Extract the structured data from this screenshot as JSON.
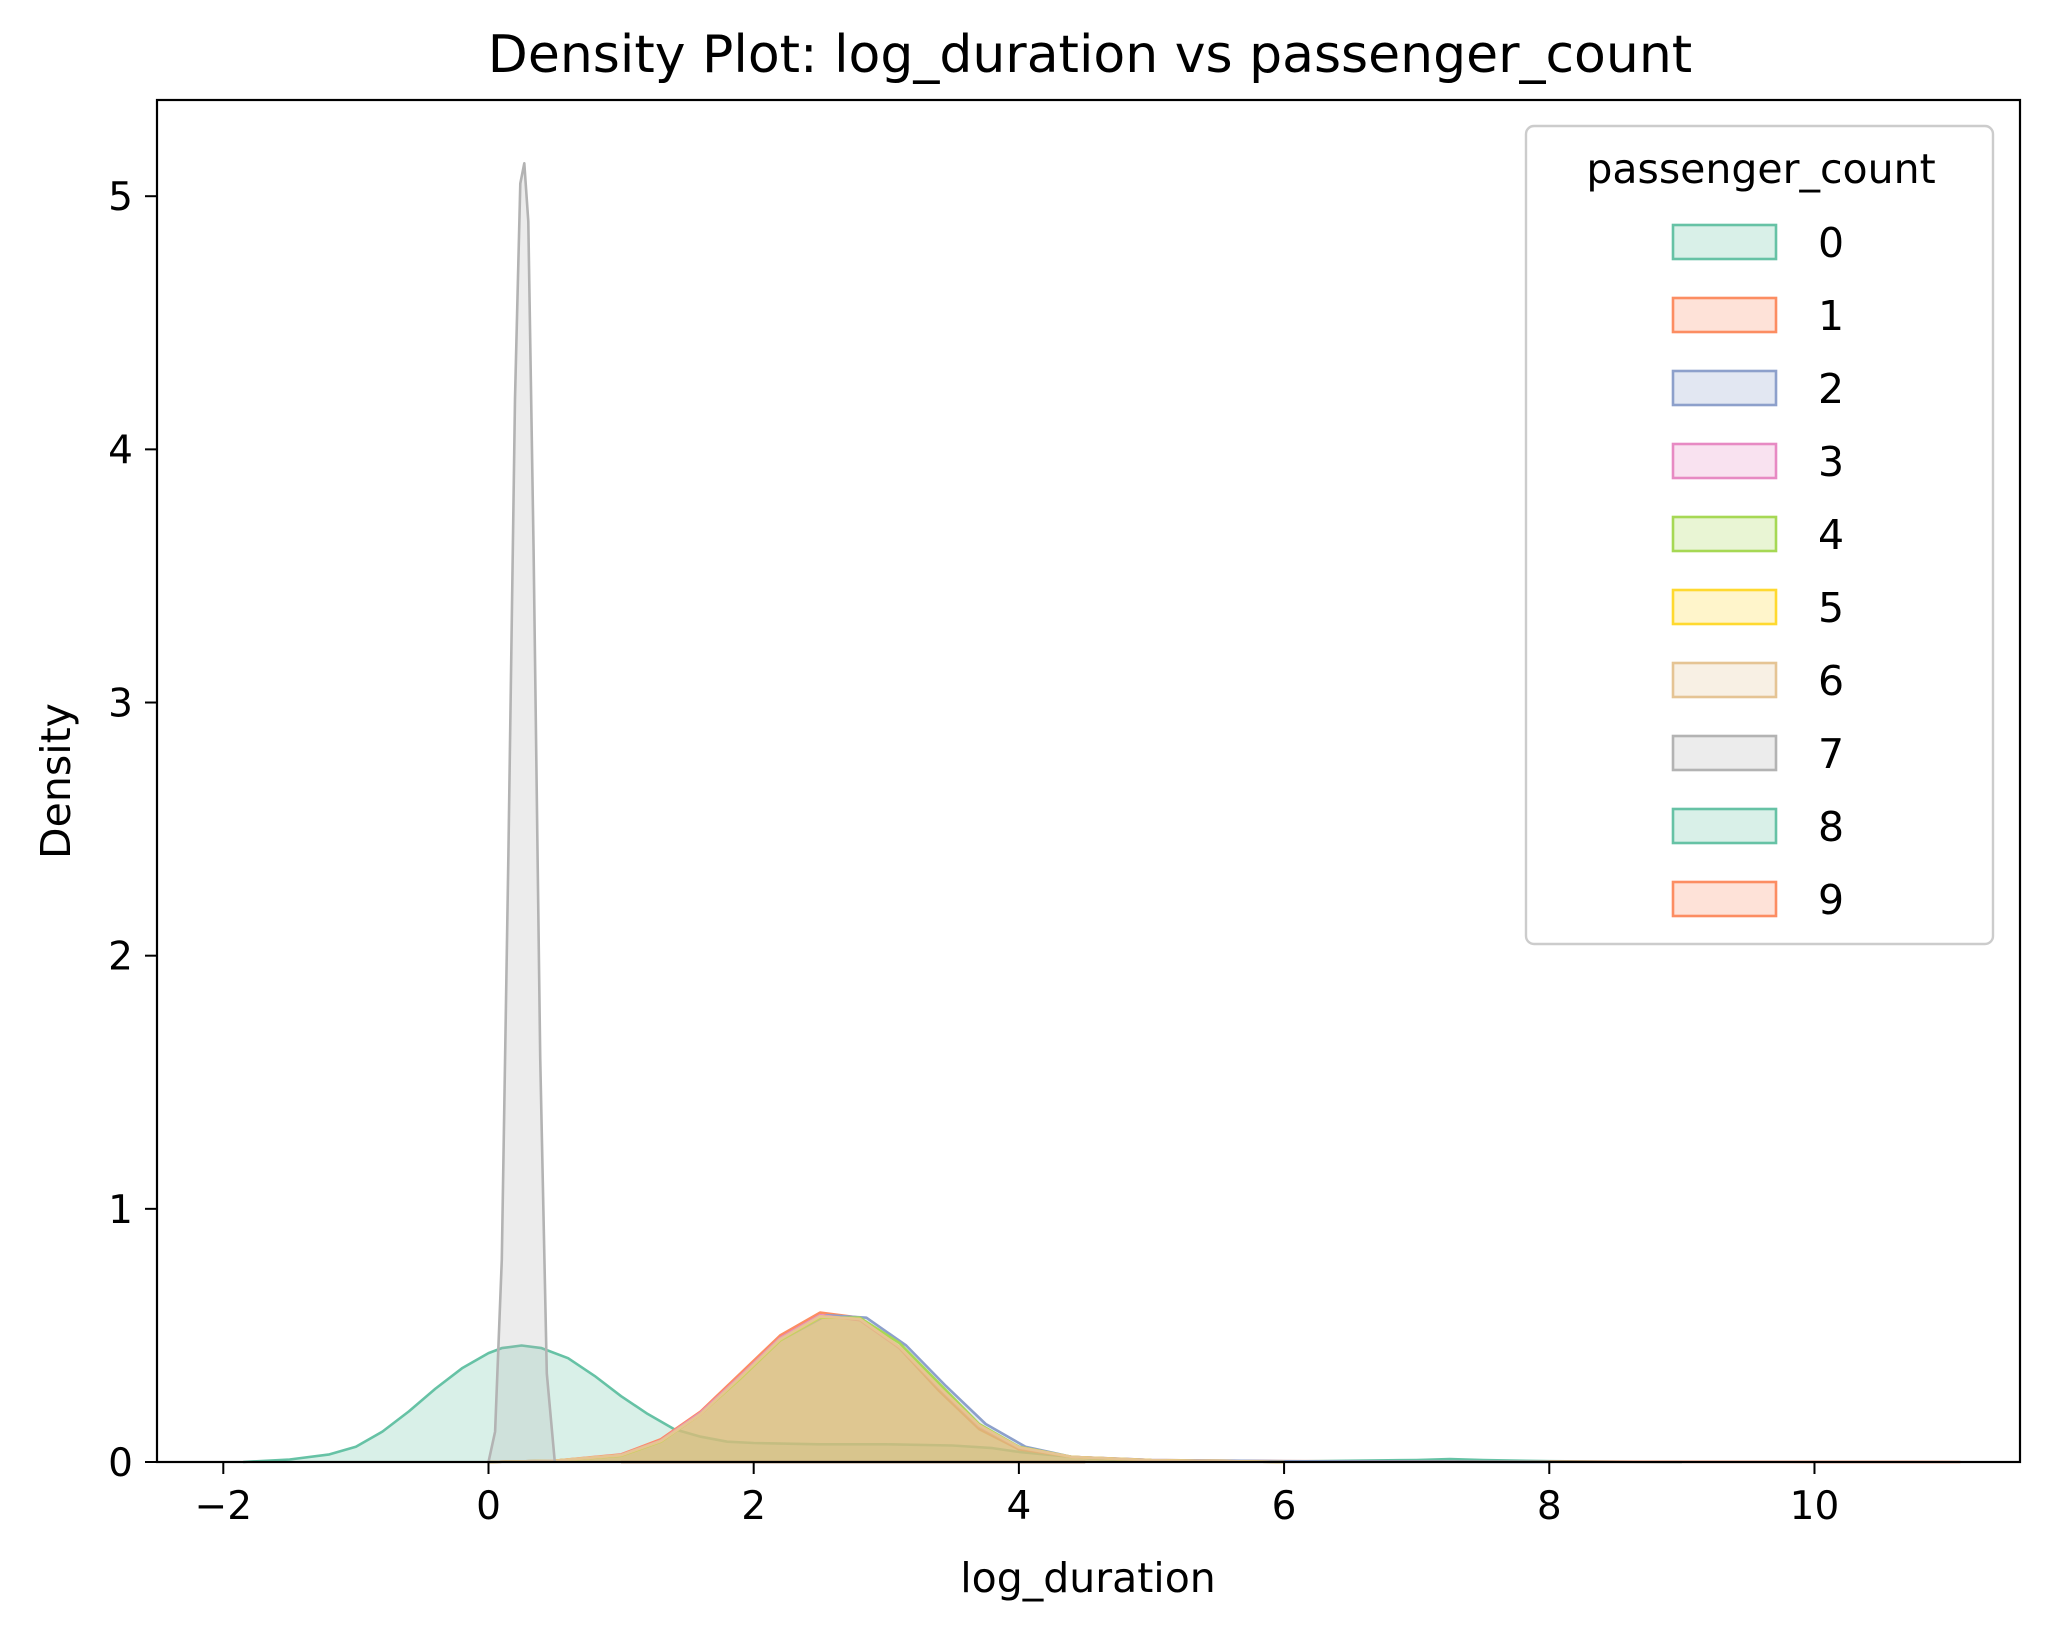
{
  "chart_data": {
    "type": "area",
    "title": "Density Plot: log_duration vs passenger_count",
    "xlabel": "log_duration",
    "ylabel": "Density",
    "xlim": [
      -2.5,
      11.55
    ],
    "ylim": [
      0,
      5.38
    ],
    "xticks": [
      -2,
      0,
      2,
      4,
      6,
      8,
      10
    ],
    "xtick_labels": [
      "−2",
      "0",
      "2",
      "4",
      "6",
      "8",
      "10"
    ],
    "yticks": [
      0,
      1,
      2,
      3,
      4,
      5
    ],
    "ytick_labels": [
      "0",
      "1",
      "2",
      "3",
      "4",
      "5"
    ],
    "grid": false,
    "legend": {
      "title": "passenger_count",
      "placement": "top-right"
    },
    "series": [
      {
        "name": "0",
        "color": "#66c2a5",
        "x": [
          -1.85,
          -1.5,
          -1.2,
          -1.0,
          -0.8,
          -0.6,
          -0.4,
          -0.2,
          0.0,
          0.1,
          0.25,
          0.4,
          0.6,
          0.8,
          1.0,
          1.2,
          1.4,
          1.6,
          1.8,
          2.0,
          2.5,
          3.0,
          3.5,
          3.8,
          4.0,
          4.3,
          4.6,
          5.0,
          6.0,
          7.0,
          7.25,
          7.5,
          8.0,
          8.5,
          9.0
        ],
        "y": [
          0.0,
          0.01,
          0.03,
          0.06,
          0.12,
          0.2,
          0.29,
          0.37,
          0.43,
          0.45,
          0.46,
          0.45,
          0.41,
          0.34,
          0.26,
          0.19,
          0.13,
          0.1,
          0.08,
          0.075,
          0.07,
          0.07,
          0.065,
          0.055,
          0.04,
          0.025,
          0.012,
          0.005,
          0.002,
          0.008,
          0.012,
          0.008,
          0.003,
          0.001,
          0.0
        ]
      },
      {
        "name": "1",
        "color": "#fc8d62",
        "x": [
          0.0,
          0.5,
          1.0,
          1.3,
          1.6,
          1.9,
          2.2,
          2.5,
          2.8,
          3.1,
          3.4,
          3.7,
          4.0,
          4.4,
          5.0,
          6.0,
          8.0,
          10.0,
          11.1
        ],
        "y": [
          0.0,
          0.005,
          0.03,
          0.09,
          0.2,
          0.35,
          0.5,
          0.59,
          0.57,
          0.45,
          0.28,
          0.13,
          0.05,
          0.02,
          0.008,
          0.003,
          0.001,
          0.0005,
          0.0
        ]
      },
      {
        "name": "2",
        "color": "#8da0cb",
        "x": [
          0.0,
          0.5,
          1.0,
          1.3,
          1.6,
          1.9,
          2.2,
          2.55,
          2.85,
          3.15,
          3.45,
          3.75,
          4.05,
          4.4,
          5.0,
          6.0,
          8.0
        ],
        "y": [
          0.0,
          0.005,
          0.025,
          0.08,
          0.19,
          0.33,
          0.48,
          0.58,
          0.57,
          0.46,
          0.3,
          0.15,
          0.06,
          0.02,
          0.008,
          0.003,
          0.0
        ]
      },
      {
        "name": "3",
        "color": "#e78ac3",
        "x": [
          0.0,
          0.5,
          1.0,
          1.3,
          1.6,
          1.9,
          2.2,
          2.5,
          2.8,
          3.1,
          3.4,
          3.7,
          4.0,
          4.4,
          5.0,
          6.0
        ],
        "y": [
          0.0,
          0.005,
          0.028,
          0.085,
          0.195,
          0.34,
          0.49,
          0.58,
          0.56,
          0.45,
          0.29,
          0.14,
          0.055,
          0.02,
          0.007,
          0.0
        ]
      },
      {
        "name": "4",
        "color": "#a6d854",
        "x": [
          0.0,
          0.5,
          1.0,
          1.3,
          1.6,
          1.9,
          2.2,
          2.5,
          2.8,
          3.1,
          3.4,
          3.7,
          4.0,
          4.4,
          5.0,
          6.0
        ],
        "y": [
          0.0,
          0.005,
          0.025,
          0.08,
          0.19,
          0.33,
          0.48,
          0.57,
          0.57,
          0.47,
          0.31,
          0.15,
          0.06,
          0.02,
          0.007,
          0.0
        ]
      },
      {
        "name": "5",
        "color": "#ffd92f",
        "x": [
          0.0,
          0.5,
          1.0,
          1.3,
          1.6,
          1.9,
          2.2,
          2.5,
          2.8,
          3.1,
          3.4,
          3.7,
          4.0,
          4.4,
          5.0,
          6.0
        ],
        "y": [
          0.0,
          0.005,
          0.027,
          0.083,
          0.19,
          0.335,
          0.485,
          0.575,
          0.565,
          0.455,
          0.295,
          0.145,
          0.058,
          0.02,
          0.007,
          0.0
        ]
      },
      {
        "name": "6",
        "color": "#e5c494",
        "x": [
          0.0,
          0.5,
          1.0,
          1.3,
          1.6,
          1.9,
          2.2,
          2.5,
          2.8,
          3.1,
          3.4,
          3.7,
          4.0,
          4.4,
          5.0,
          6.0
        ],
        "y": [
          0.0,
          0.005,
          0.027,
          0.083,
          0.19,
          0.335,
          0.485,
          0.575,
          0.565,
          0.455,
          0.295,
          0.145,
          0.058,
          0.02,
          0.007,
          0.0
        ]
      },
      {
        "name": "7",
        "color": "#b3b3b3",
        "x": [
          0.0,
          0.05,
          0.1,
          0.15,
          0.2,
          0.24,
          0.27,
          0.3,
          0.34,
          0.39,
          0.44,
          0.5
        ],
        "y": [
          0.0,
          0.12,
          0.8,
          2.4,
          4.2,
          5.05,
          5.13,
          4.9,
          3.6,
          1.6,
          0.35,
          0.0
        ]
      },
      {
        "name": "8",
        "color": "#66c2a5",
        "x": [
          1.0,
          1.5,
          2.0,
          2.5,
          3.0,
          3.5,
          4.0,
          4.5
        ],
        "y": [
          0.0,
          0.0,
          0.0,
          0.0,
          0.0,
          0.0,
          0.0,
          0.0
        ]
      },
      {
        "name": "9",
        "color": "#fc8d62",
        "x": [
          1.0,
          1.5,
          2.0,
          2.5,
          3.0,
          3.5,
          4.0,
          4.5
        ],
        "y": [
          0.0,
          0.0,
          0.0,
          0.0,
          0.0,
          0.0,
          0.0,
          0.0
        ]
      }
    ]
  }
}
